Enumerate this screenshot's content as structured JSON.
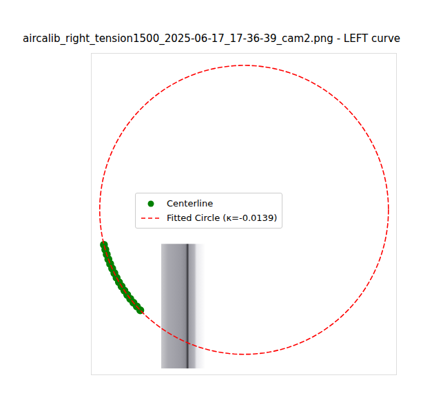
{
  "chart_data": {
    "type": "scatter",
    "title": "aircalib_right_tension1500_2025-06-17_17-36-39_cam2.png - LEFT curve",
    "xlim": [
      -35,
      117
    ],
    "ylim": [
      65,
      -95
    ],
    "tick_labels": false,
    "grid": false,
    "legend": "center",
    "image_extent": [
      0,
      22,
      62,
      0
    ],
    "series": [
      {
        "name": "Centerline",
        "type": "scatter",
        "color": "#008000",
        "marker": "o",
        "x": [
          -28.7,
          -28.0,
          -27.3,
          -26.5,
          -25.6,
          -24.6,
          -23.5,
          -22.4,
          -21.2,
          -19.9,
          -18.5,
          -17.1,
          -15.6,
          -14.0,
          -12.3,
          -10.6
        ],
        "y": [
          0.3,
          2.7,
          5.1,
          7.5,
          9.8,
          12.1,
          14.4,
          16.7,
          18.9,
          21.0,
          23.1,
          25.2,
          27.2,
          29.1,
          31.0,
          32.9
        ]
      },
      {
        "name": "Fitted Circle (κ=-0.0139)",
        "type": "circle",
        "color": "#ff0000",
        "line_style": "dashed",
        "center": [
          41.1,
          -17.1
        ],
        "radius": 71.9
      }
    ]
  }
}
